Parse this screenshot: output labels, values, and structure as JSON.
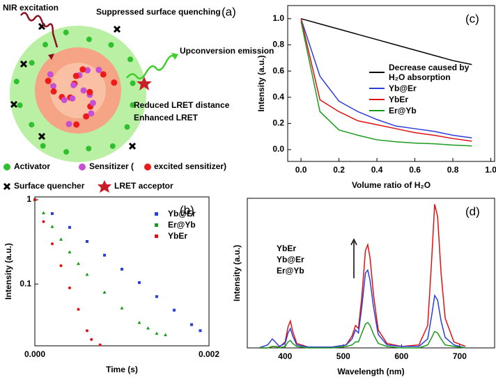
{
  "diagram": {
    "panel_label": "(a)",
    "labels": [
      "NIR excitation",
      "Suppressed surface quenching",
      "Upconversion emission",
      "Reduced LRET distance",
      "Enhanced LRET"
    ],
    "legend": [
      "Activator",
      "Sensitizer (",
      "excited sensitizer)",
      "Surface quencher",
      "LRET acceptor"
    ]
  },
  "chart_data": [
    {
      "type": "scatter",
      "panel_label": "(b)",
      "xlabel": "Time (s)",
      "ylabel": "Intensity (a.u.)",
      "log_y": true,
      "legend": "upper right",
      "xlim": [
        0,
        0.002
      ],
      "xticks": [
        {
          "value": 0,
          "label": "0.000"
        },
        0.002
      ],
      "ylim": [
        0.0185,
        1.08
      ],
      "yticks": [
        0.1,
        1
      ],
      "series": [
        {
          "name": "Yb@Er",
          "color": "#2a3fd8",
          "marker": "square",
          "x": [
            0,
            0.0002,
            0.0004,
            0.0006,
            0.0008,
            0.001,
            0.0012,
            0.0014,
            0.0016,
            0.0018,
            0.0019
          ],
          "values": [
            1,
            0.685,
            0.47,
            0.32,
            0.22,
            0.15,
            0.104,
            0.071,
            0.049,
            0.033,
            0.028
          ]
        },
        {
          "name": "Er@Yb",
          "color": "#1a9a1a",
          "marker": "triangle",
          "x": [
            0,
            0.0001,
            0.0002,
            0.0003,
            0.0004,
            0.0005,
            0.0006,
            0.0008,
            0.001,
            0.0012,
            0.0013,
            0.0014,
            0.0015
          ],
          "values": [
            1,
            0.7,
            0.48,
            0.34,
            0.24,
            0.175,
            0.13,
            0.08,
            0.052,
            0.035,
            0.03,
            0.026,
            0.025
          ]
        },
        {
          "name": "YbEr",
          "color": "#e01010",
          "marker": "circle",
          "x": [
            0,
            0.0001,
            0.0002,
            0.0003,
            0.0004,
            0.0005,
            0.0006,
            0.00065,
            0.00075
          ],
          "values": [
            1,
            0.55,
            0.3,
            0.165,
            0.09,
            0.05,
            0.028,
            0.022,
            0.019
          ]
        }
      ]
    },
    {
      "type": "line",
      "panel_label": "(c)",
      "xlabel": "Volume ratio of H₂O",
      "ylabel": "Intensity (a.u.)",
      "legend": "center right",
      "xlim": [
        -0.07,
        1.02
      ],
      "xticks": [
        {
          "value": 0,
          "label": "0.0"
        },
        0.2,
        0.4,
        0.6,
        0.8,
        {
          "value": 1,
          "label": "1.0"
        }
      ],
      "ylim": [
        -0.09,
        1.1
      ],
      "yticks": [
        {
          "value": 0,
          "label": "0.0"
        },
        0.2,
        0.4,
        0.6,
        0.8,
        {
          "value": 1,
          "label": "1.0"
        }
      ],
      "x": [
        0,
        0.1,
        0.2,
        0.3,
        0.4,
        0.5,
        0.6,
        0.7,
        0.8,
        0.9
      ],
      "series": [
        {
          "name": "Decrease caused by H₂O absorption",
          "color": "#000000",
          "values": [
            1,
            0.96,
            0.92,
            0.88,
            0.84,
            0.8,
            0.76,
            0.72,
            0.68,
            0.65
          ]
        },
        {
          "name": "Yb@Er",
          "color": "#2a3fd8",
          "values": [
            1,
            0.56,
            0.37,
            0.29,
            0.23,
            0.18,
            0.16,
            0.14,
            0.11,
            0.09
          ]
        },
        {
          "name": "YbEr",
          "color": "#e01010",
          "values": [
            1,
            0.38,
            0.29,
            0.22,
            0.19,
            0.16,
            0.13,
            0.11,
            0.085,
            0.065
          ]
        },
        {
          "name": "Er@Yb",
          "color": "#1a9a1a",
          "values": [
            0.98,
            0.29,
            0.15,
            0.11,
            0.075,
            0.06,
            0.05,
            0.045,
            0.035,
            0.028
          ]
        }
      ]
    },
    {
      "type": "line",
      "panel_label": "(d)",
      "xlabel": "Wavelength (nm)",
      "ylabel": "Intensity (a.u.)",
      "legend": "upper left",
      "xlim": [
        335,
        760
      ],
      "xticks": [
        400,
        500,
        600,
        700
      ],
      "ylim": [
        0,
        1
      ],
      "x": [
        355,
        370,
        378,
        383,
        390,
        400,
        405,
        409,
        413,
        420,
        440,
        480,
        505,
        515,
        521,
        526,
        532,
        538,
        542,
        546,
        552,
        560,
        575,
        600,
        630,
        645,
        652,
        657,
        662,
        668,
        675,
        690,
        710
      ],
      "series": [
        {
          "name": "YbEr",
          "color": "#e01010",
          "values": [
            0,
            0,
            0.01,
            0.01,
            0.005,
            0.04,
            0.14,
            0.18,
            0.11,
            0.03,
            0.005,
            0.005,
            0.02,
            0.08,
            0.15,
            0.13,
            0.35,
            0.65,
            0.69,
            0.6,
            0.35,
            0.12,
            0.03,
            0.01,
            0.02,
            0.15,
            0.6,
            0.96,
            0.88,
            0.5,
            0.2,
            0.04,
            0.01
          ]
        },
        {
          "name": "Yb@Er",
          "color": "#2a3fd8",
          "values": [
            0,
            0.02,
            0.06,
            0.04,
            0.01,
            0.03,
            0.1,
            0.13,
            0.08,
            0.02,
            0.005,
            0.005,
            0.02,
            0.06,
            0.12,
            0.1,
            0.28,
            0.5,
            0.52,
            0.45,
            0.27,
            0.09,
            0.02,
            0.01,
            0.01,
            0.06,
            0.22,
            0.35,
            0.32,
            0.18,
            0.07,
            0.02,
            0
          ]
        },
        {
          "name": "Er@Yb",
          "color": "#1a9a1a",
          "values": [
            0,
            0,
            0.01,
            0.01,
            0,
            0.01,
            0.04,
            0.05,
            0.03,
            0.01,
            0,
            0,
            0.01,
            0.02,
            0.04,
            0.04,
            0.1,
            0.16,
            0.17,
            0.15,
            0.09,
            0.03,
            0.01,
            0,
            0,
            0.02,
            0.07,
            0.11,
            0.1,
            0.06,
            0.02,
            0.01,
            0
          ]
        }
      ]
    }
  ]
}
